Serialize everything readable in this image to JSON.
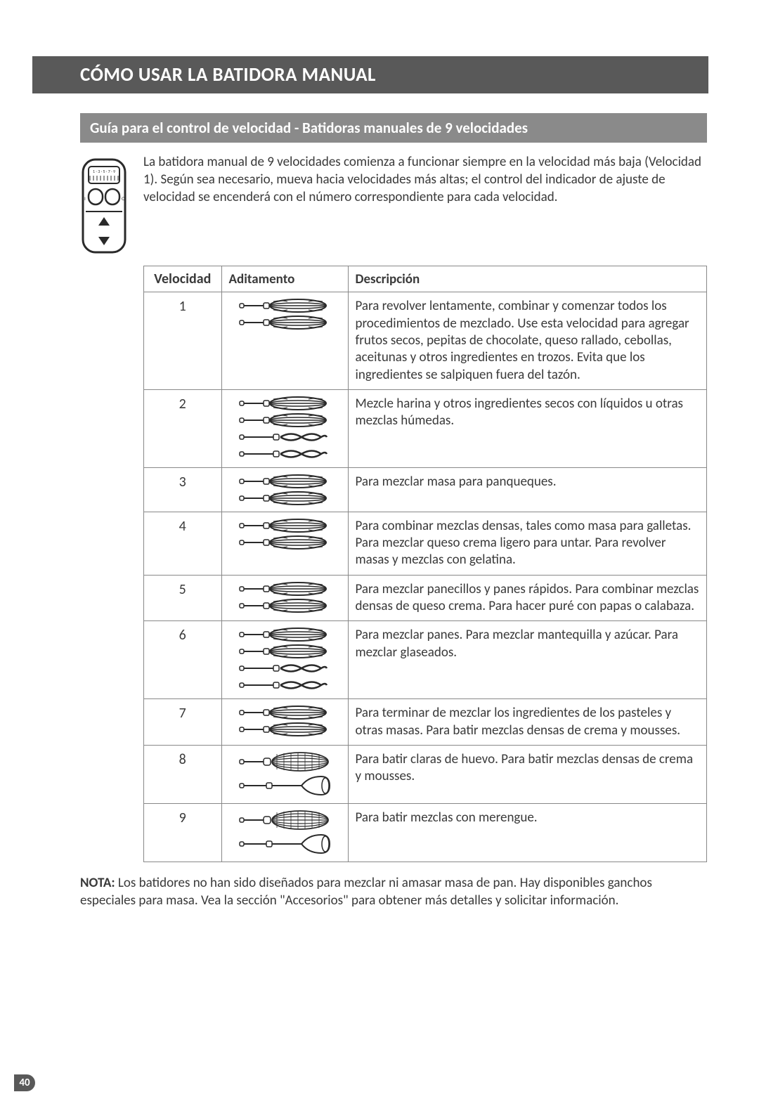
{
  "page": {
    "number": "40",
    "title": "CÓMO USAR LA BATIDORA MANUAL",
    "subtitle": "Guía para el control de velocidad - Batidoras manuales de 9 velocidades",
    "intro": "La batidora manual de 9 velocidades comienza a funcionar siempre en la velocidad más baja (Velocidad 1). Según sea necesario, mueva hacia velocidades más altas; el control del indicador de ajuste de velocidad se encenderá con el número correspondiente para cada velocidad.",
    "note_label": "NOTA:",
    "note_text": " Los batidores no han sido diseñados para mezclar ni amasar masa de pan. Hay disponibles ganchos especiales para masa. Vea la sección \"Accesorios\" para obtener más detalles y solicitar información."
  },
  "control": {
    "display_labels": "1 · 3 · 5 · 7 · 9"
  },
  "table": {
    "headers": {
      "speed": "Velocidad",
      "attachment": "Aditamento",
      "description": "Descripción"
    },
    "rows": [
      {
        "speed": "1",
        "attachments": [
          "turbo",
          "turbo"
        ],
        "desc": "Para revolver lentamente, combinar y comenzar todos los procedimientos de mezclado. Use esta velocidad para agregar frutos secos, pepitas de chocolate, queso rallado, cebollas, aceitunas y otros ingredientes en trozos. Evita que los ingredientes se salpiquen fuera del tazón."
      },
      {
        "speed": "2",
        "attachments": [
          "turbo",
          "turbo",
          "dough",
          "dough"
        ],
        "desc": "Mezcle harina y otros ingredientes secos con líquidos u otras mezclas húmedas."
      },
      {
        "speed": "3",
        "attachments": [
          "turbo",
          "turbo"
        ],
        "desc": "Para mezclar masa para panqueques."
      },
      {
        "speed": "4",
        "attachments": [
          "turbo",
          "turbo"
        ],
        "desc": "Para combinar mezclas densas, tales como masa para galletas. Para mezclar queso crema ligero para untar. Para revolver masas y mezclas con gelatina."
      },
      {
        "speed": "5",
        "attachments": [
          "turbo",
          "turbo"
        ],
        "desc": "Para mezclar panecillos y panes rápidos. Para combinar mezclas densas de queso crema. Para hacer puré con papas o calabaza."
      },
      {
        "speed": "6",
        "attachments": [
          "turbo",
          "turbo",
          "dough",
          "dough"
        ],
        "desc": "Para mezclar panes. Para mezclar mantequilla y azúcar. Para mezclar glaseados."
      },
      {
        "speed": "7",
        "attachments": [
          "turbo",
          "turbo"
        ],
        "desc": "Para terminar de mezclar los ingredientes de los pasteles y otras masas. Para batir mezclas densas de crema y mousses."
      },
      {
        "speed": "8",
        "attachments": [
          "whisk",
          "blend"
        ],
        "desc": "Para batir claras de huevo. Para batir mezclas densas de crema y mousses."
      },
      {
        "speed": "9",
        "attachments": [
          "whisk",
          "blend"
        ],
        "desc": "Para batir mezclas con merengue."
      }
    ]
  },
  "style": {
    "title_bg": "#595959",
    "subtitle_bg": "#8a8a8a",
    "text_color": "#3a3a3a",
    "border_color": "#888888",
    "font_size_title": 27,
    "font_size_subtitle": 21,
    "font_size_body": 19
  },
  "icons": {
    "turbo": "turbo-beater",
    "dough": "dough-hook",
    "whisk": "wire-whisk",
    "blend": "blending-rod"
  }
}
